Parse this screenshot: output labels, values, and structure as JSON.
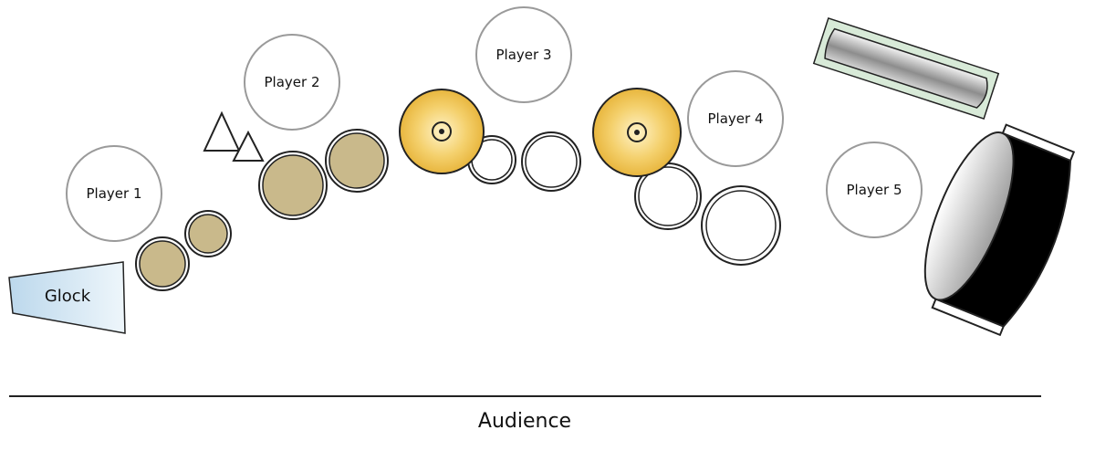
{
  "players": [
    {
      "id": "player-1",
      "label": "Player 1"
    },
    {
      "id": "player-2",
      "label": "Player 2"
    },
    {
      "id": "player-3",
      "label": "Player 3"
    },
    {
      "id": "player-4",
      "label": "Player 4"
    },
    {
      "id": "player-5",
      "label": "Player 5"
    }
  ],
  "instruments": {
    "glock_label": "Glock"
  },
  "audience_label": "Audience",
  "colors": {
    "drum_fill": "#c9b98b",
    "cymbal_fill": "#f1c85a",
    "glock_fill": "#cfe3f1",
    "player_stroke": "#9a9a9a",
    "line": "#222222"
  }
}
